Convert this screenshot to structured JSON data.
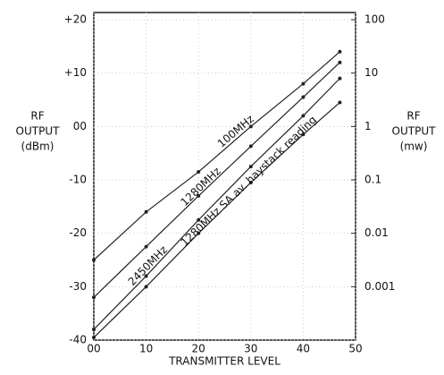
{
  "chart_data": {
    "type": "line",
    "x_label": "TRANSMITTER LEVEL",
    "y_label": [
      "RF",
      "OUTPUT",
      "(dBm)"
    ],
    "y2_label": [
      "RF",
      "OUTPUT",
      "(mw)"
    ],
    "x": [
      0,
      10,
      20,
      30,
      40,
      47
    ],
    "series": [
      {
        "name": "100MHz",
        "color": "#222222",
        "values": [
          -25,
          -16,
          -8.5,
          0,
          8,
          14
        ]
      },
      {
        "name": "1280MHz",
        "color": "#222222",
        "values": [
          -32,
          -22.5,
          -13,
          -3.7,
          5.5,
          12
        ]
      },
      {
        "name": "2450MHz",
        "color": "#222222",
        "values": [
          -38,
          -28,
          -17.5,
          -7.5,
          2,
          9
        ]
      },
      {
        "name": "1280MHz SA av. haystack reading",
        "color": "#222222",
        "values": [
          -39.5,
          -30,
          -20,
          -10.5,
          -1.5,
          4.5
        ]
      }
    ],
    "xlim": [
      0,
      50
    ],
    "xticks": [
      {
        "value": 0,
        "label": "00"
      },
      10,
      20,
      30,
      40,
      50
    ],
    "ylim": [
      -40,
      20
    ],
    "yticks": [
      {
        "value": 20,
        "label": "+20"
      },
      {
        "value": 10,
        "label": "+10"
      },
      {
        "value": 0,
        "label": "00"
      },
      {
        "value": -10,
        "label": "-10"
      },
      {
        "value": -20,
        "label": "-20"
      },
      {
        "value": -30,
        "label": "-30"
      },
      {
        "value": -40,
        "label": "-40"
      }
    ],
    "y2lim": [
      0.0001,
      100
    ],
    "y2scale": "log",
    "y2ticks": [
      100,
      10,
      1,
      0.1,
      0.01,
      0.001
    ],
    "grid": true
  }
}
